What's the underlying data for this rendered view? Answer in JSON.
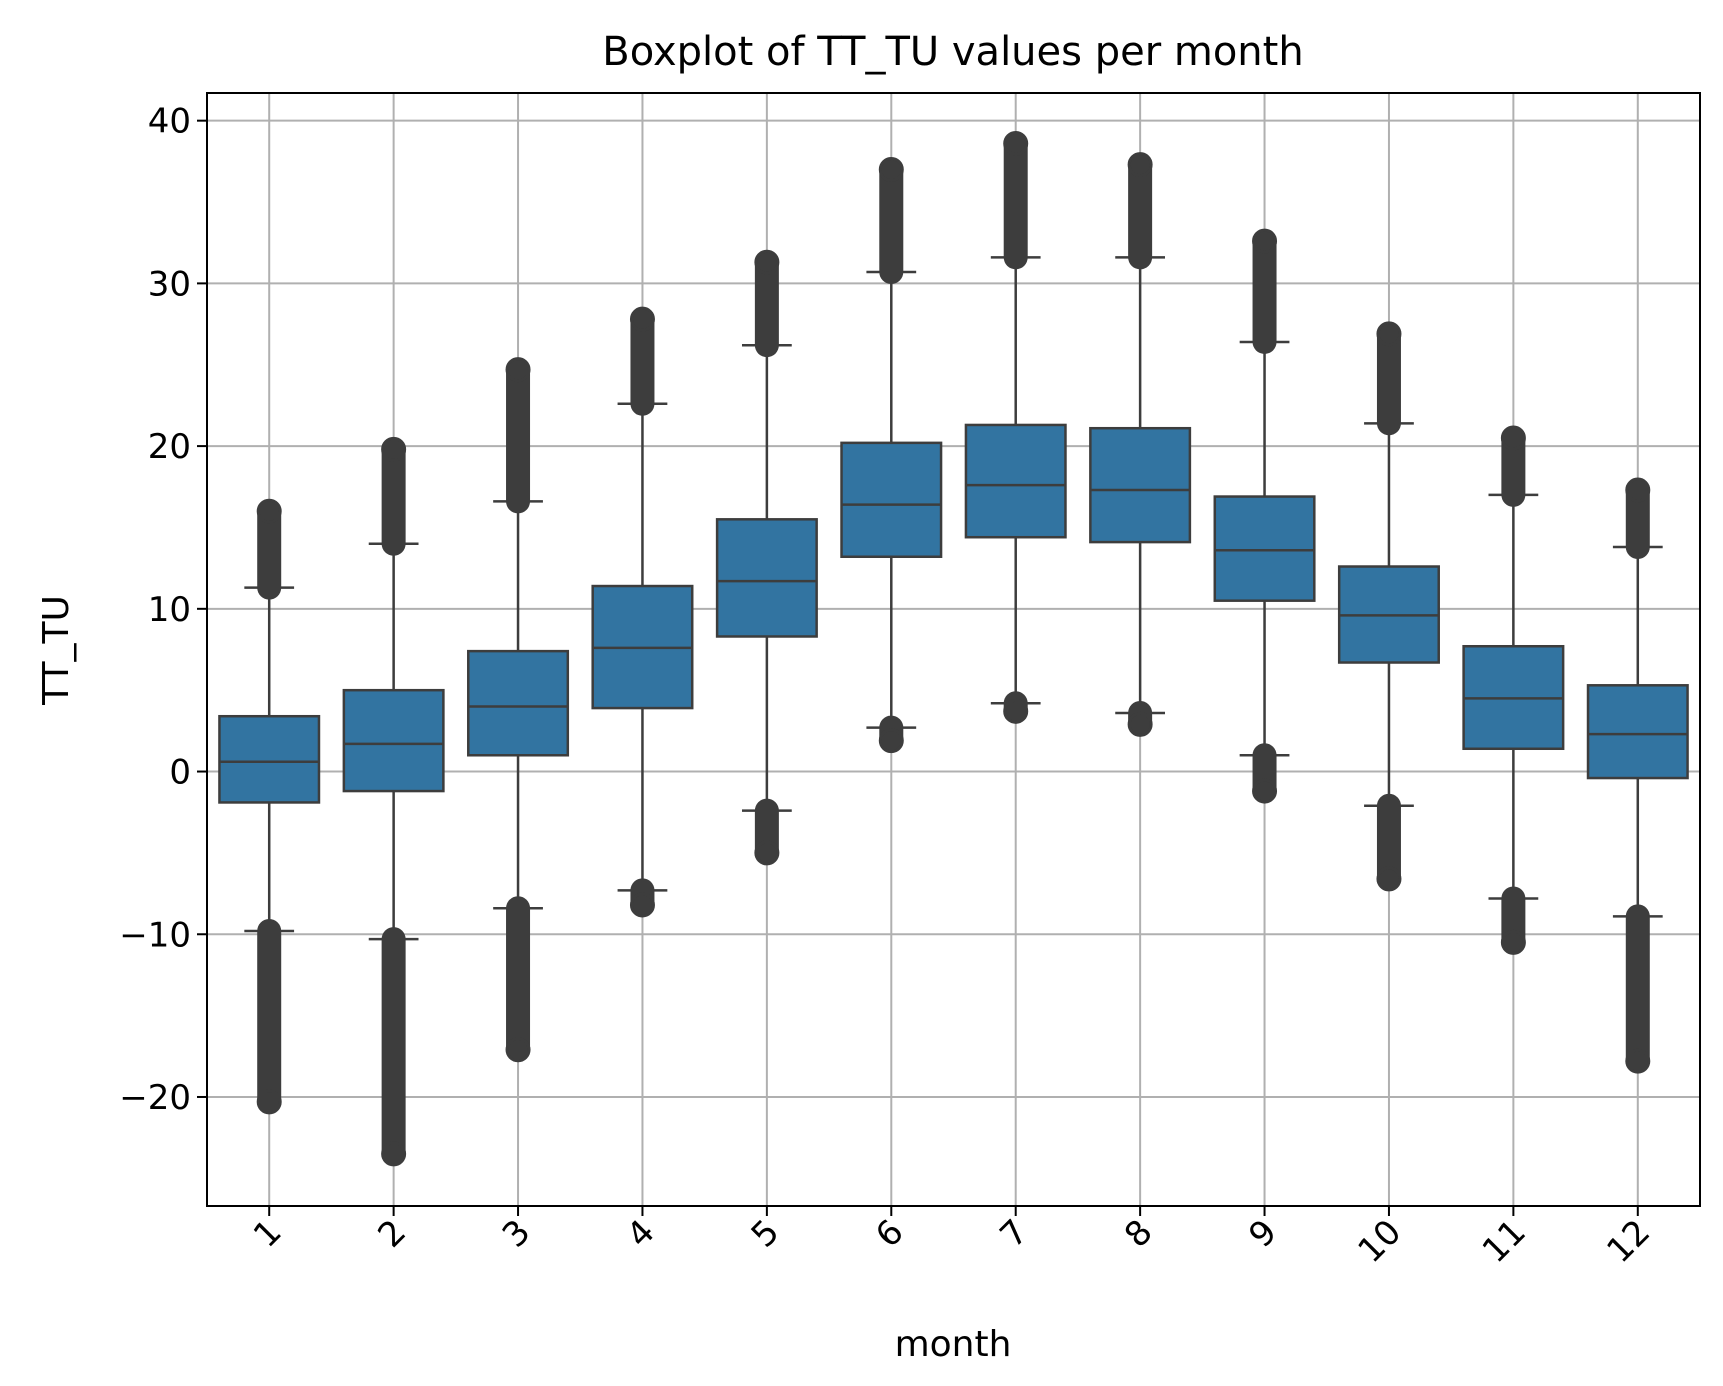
{
  "chart_data": {
    "type": "boxplot",
    "title": "Boxplot of TT_TU values per month",
    "xlabel": "month",
    "ylabel": "TT_TU",
    "categories": [
      "1",
      "2",
      "3",
      "4",
      "5",
      "6",
      "7",
      "8",
      "9",
      "10",
      "11",
      "12"
    ],
    "ylim": [
      -26.7,
      41.7
    ],
    "yticks": [
      -20,
      -10,
      0,
      10,
      20,
      30,
      40
    ],
    "ytick_labels": [
      "−20",
      "−10",
      "0",
      "10",
      "20",
      "30",
      "40"
    ],
    "grid": true,
    "box_color": "#3274a1",
    "line_color": "#3d3d3d",
    "boxes": [
      {
        "q1": -1.9,
        "median": 0.6,
        "q3": 3.4,
        "whislo": -9.8,
        "whishi": 11.3,
        "fliers_low": [
          -20.3,
          -9.8
        ],
        "fliers_high": [
          11.3,
          16.0
        ]
      },
      {
        "q1": -1.2,
        "median": 1.7,
        "q3": 5.0,
        "whislo": -10.3,
        "whishi": 14.0,
        "fliers_low": [
          -23.5,
          -10.3
        ],
        "fliers_high": [
          14.0,
          19.8
        ]
      },
      {
        "q1": 1.0,
        "median": 4.0,
        "q3": 7.4,
        "whislo": -8.4,
        "whishi": 16.6,
        "fliers_low": [
          -17.1,
          -8.4
        ],
        "fliers_high": [
          16.6,
          24.7
        ]
      },
      {
        "q1": 3.9,
        "median": 7.6,
        "q3": 11.4,
        "whislo": -7.3,
        "whishi": 22.6,
        "fliers_low": [
          -8.2,
          -7.3
        ],
        "fliers_high": [
          22.6,
          27.8
        ]
      },
      {
        "q1": 8.3,
        "median": 11.7,
        "q3": 15.5,
        "whislo": -2.4,
        "whishi": 26.2,
        "fliers_low": [
          -5.0,
          -2.4
        ],
        "fliers_high": [
          26.2,
          31.3
        ]
      },
      {
        "q1": 13.2,
        "median": 16.4,
        "q3": 20.2,
        "whislo": 2.7,
        "whishi": 30.7,
        "fliers_low": [
          1.9,
          2.7
        ],
        "fliers_high": [
          30.7,
          37.0
        ]
      },
      {
        "q1": 14.4,
        "median": 17.6,
        "q3": 21.3,
        "whislo": 4.2,
        "whishi": 31.6,
        "fliers_low": [
          3.7,
          4.2
        ],
        "fliers_high": [
          31.6,
          38.6
        ]
      },
      {
        "q1": 14.1,
        "median": 17.3,
        "q3": 21.1,
        "whislo": 3.6,
        "whishi": 31.6,
        "fliers_low": [
          2.9,
          3.6
        ],
        "fliers_high": [
          31.6,
          37.3
        ]
      },
      {
        "q1": 10.5,
        "median": 13.6,
        "q3": 16.9,
        "whislo": 1.0,
        "whishi": 26.4,
        "fliers_low": [
          -1.2,
          1.0
        ],
        "fliers_high": [
          26.4,
          32.6
        ]
      },
      {
        "q1": 6.7,
        "median": 9.6,
        "q3": 12.6,
        "whislo": -2.1,
        "whishi": 21.4,
        "fliers_low": [
          -6.6,
          -2.1
        ],
        "fliers_high": [
          21.4,
          26.9
        ]
      },
      {
        "q1": 1.4,
        "median": 4.5,
        "q3": 7.7,
        "whislo": -7.8,
        "whishi": 17.0,
        "fliers_low": [
          -10.5,
          -7.8
        ],
        "fliers_high": [
          17.0,
          20.5
        ]
      },
      {
        "q1": -0.4,
        "median": 2.3,
        "q3": 5.3,
        "whislo": -8.9,
        "whishi": 13.8,
        "fliers_low": [
          -17.8,
          -8.9
        ],
        "fliers_high": [
          13.8,
          17.3
        ]
      }
    ]
  }
}
